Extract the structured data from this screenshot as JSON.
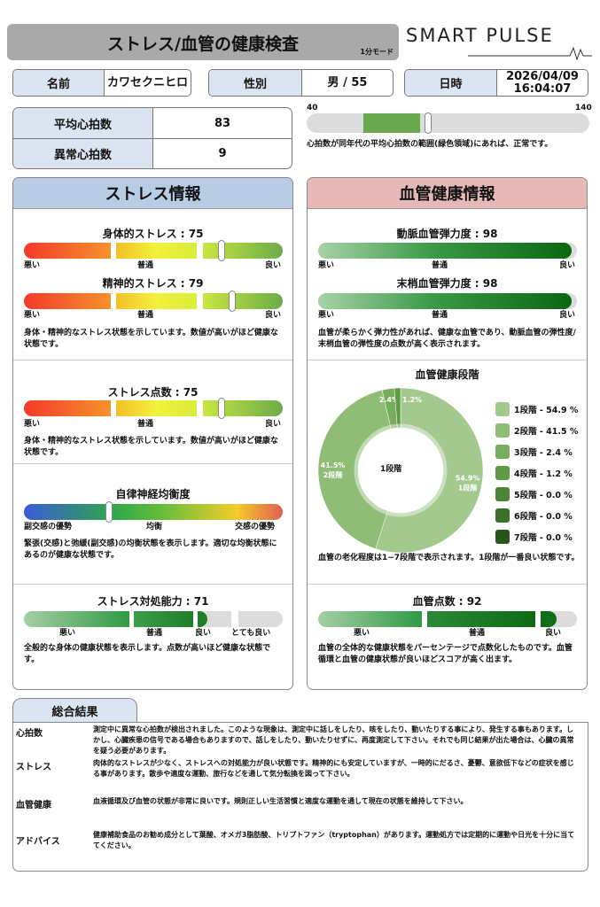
{
  "header": {
    "title": "ストレス/血管の健康検査",
    "mode": "1分モード",
    "logo": "SMART PULSE"
  },
  "info": {
    "name_label": "名前",
    "name": "カワセクニヒロ",
    "sex_label": "性別",
    "sex_age": "男 / 55",
    "date_label": "日時",
    "date": "2026/04/09",
    "time": "16:04:07"
  },
  "heart": {
    "avg_label": "平均心拍数",
    "avg": "83",
    "abnormal_label": "異常心拍数",
    "abnormal": "9",
    "range_min": "40",
    "range_max": "140",
    "normal_low": 60,
    "normal_high": 80,
    "value": 83,
    "caption": "心拍数が同年代の平均心拍数の範囲(緑色領域)にあれば、正常です。",
    "normal_color": "#6aa84f"
  },
  "stress": {
    "title": "ストレス情報",
    "header_color": "#b8cce4",
    "physical": {
      "label": "身体的ストレス : 75",
      "value": 75
    },
    "mental": {
      "label": "精神的ストレス : 79",
      "value": 79
    },
    "scale": {
      "bad": "悪い",
      "normal": "普通",
      "good": "良い"
    },
    "desc1": "身体・精神的なストレス状態を示しています。数値が高いがほど健康な状態です。",
    "score": {
      "label": "ストレス点数 : 75",
      "value": 75
    },
    "desc2": "身体・精神的なストレス状態を示しています。数値が高いがほど健康な状態です。",
    "ans": {
      "label": "自律神経均衡度",
      "level": 0.33,
      "left": "副交感の優勢",
      "mid": "均衡",
      "right": "交感の優勢"
    },
    "desc3": "緊張(交感)と弛緩(副交感)の均衡状態を表示します。適切な均衡状態にあるのが健康な状態です。",
    "coping": {
      "label": "ストレス対処能力 : 71",
      "value": 71,
      "bad": "悪い",
      "normal": "普通",
      "good": "良い",
      "very_good": "とても良い"
    },
    "desc4": "全般的な身体の健康状態を表示します。点数が高いほど健康な状態です。"
  },
  "vascular": {
    "title": "血管健康情報",
    "header_color": "#e6b8b8",
    "artery": {
      "label": "動脈血管弾力度 : 98",
      "value": 98
    },
    "peripheral": {
      "label": "末梢血管弾力度 : 98",
      "value": 98
    },
    "scale": {
      "bad": "悪い",
      "normal": "普通",
      "good": "良い"
    },
    "desc1": "血管が柔らかく弾力性があれば、健康な血管であり、動脈血管の弾性度/末梢血管の弾性度の点数が高く表示されます。",
    "stage_title": "血管健康段階",
    "center_label": "1段階",
    "desc2": "血管の老化程度は1~7段階で表示されます。1段階が一番良い状態です。",
    "score": {
      "label": "血管点数 : 92",
      "value": 92
    },
    "desc3": "血管の全体的な健康状態をパーセンテージで点数化したものです。血管循環と血管の健康状態が良いほどスコアが高く出ます。"
  },
  "chart_data": {
    "type": "pie",
    "title": "血管健康段階",
    "categories": [
      "1段階",
      "2段階",
      "3段階",
      "4段階",
      "5段階",
      "6段階",
      "7段階"
    ],
    "values": [
      54.9,
      41.5,
      2.4,
      1.2,
      0.0,
      0.0,
      0.0
    ],
    "legend": [
      "1段階 - 54.9 %",
      "2段階 - 41.5 %",
      "3段階 - 2.4 %",
      "4段階 - 1.2 %",
      "5段階 - 0.0 %",
      "6段階 - 0.0 %",
      "7段階 - 0.0 %"
    ],
    "slice_labels": [
      [
        "54.9%",
        "1段階"
      ],
      [
        "41.5%",
        "2段階"
      ],
      [
        "2.4%",
        ""
      ],
      [
        "1.2%",
        ""
      ]
    ],
    "colors": [
      "#a3c98e",
      "#8fbd75",
      "#78ad5d",
      "#5f9a45",
      "#4c8535",
      "#3a7027",
      "#28561a"
    ],
    "legend_placement": "right"
  },
  "summary": {
    "tab": "総合結果",
    "rows": [
      {
        "k": "心拍数",
        "t": "測定中に異常な心拍数が検出されました。このような現象は、測定中に話しをしたり、咳をしたり、動いたりする事により、発生する事もあります。しかし、心臓疾患の信号である場合もありますので、話しをしたり、動いたりせずに、再度測定して下さい。それでも同じ結果が出た場合は、心臓の異常を疑う必要があります。"
      },
      {
        "k": "ストレス",
        "t": "肉体的なストレスが少なく、ストレスへの対処能力が良い状態です。精神的にも安定していますが、一時的にだるさ、憂鬱、意欲低下などの症状を感じる事があります。散歩や適度な運動、旅行などを通して気分転換を図って下さい。"
      },
      {
        "k": "血管健康",
        "t": "血液循環及び血管の状態が非常に良いです。規則正しい生活習慣と適度な運動を通して現在の状態を維持して下さい。"
      },
      {
        "k": "アドバイス",
        "t": "健康補助食品のお勧め成分として葉酸、オメガ3脂肪酸、トリプトファン（tryptophan）があります。運動処方では定期的に運動や日光を十分に当ててください。"
      }
    ]
  }
}
